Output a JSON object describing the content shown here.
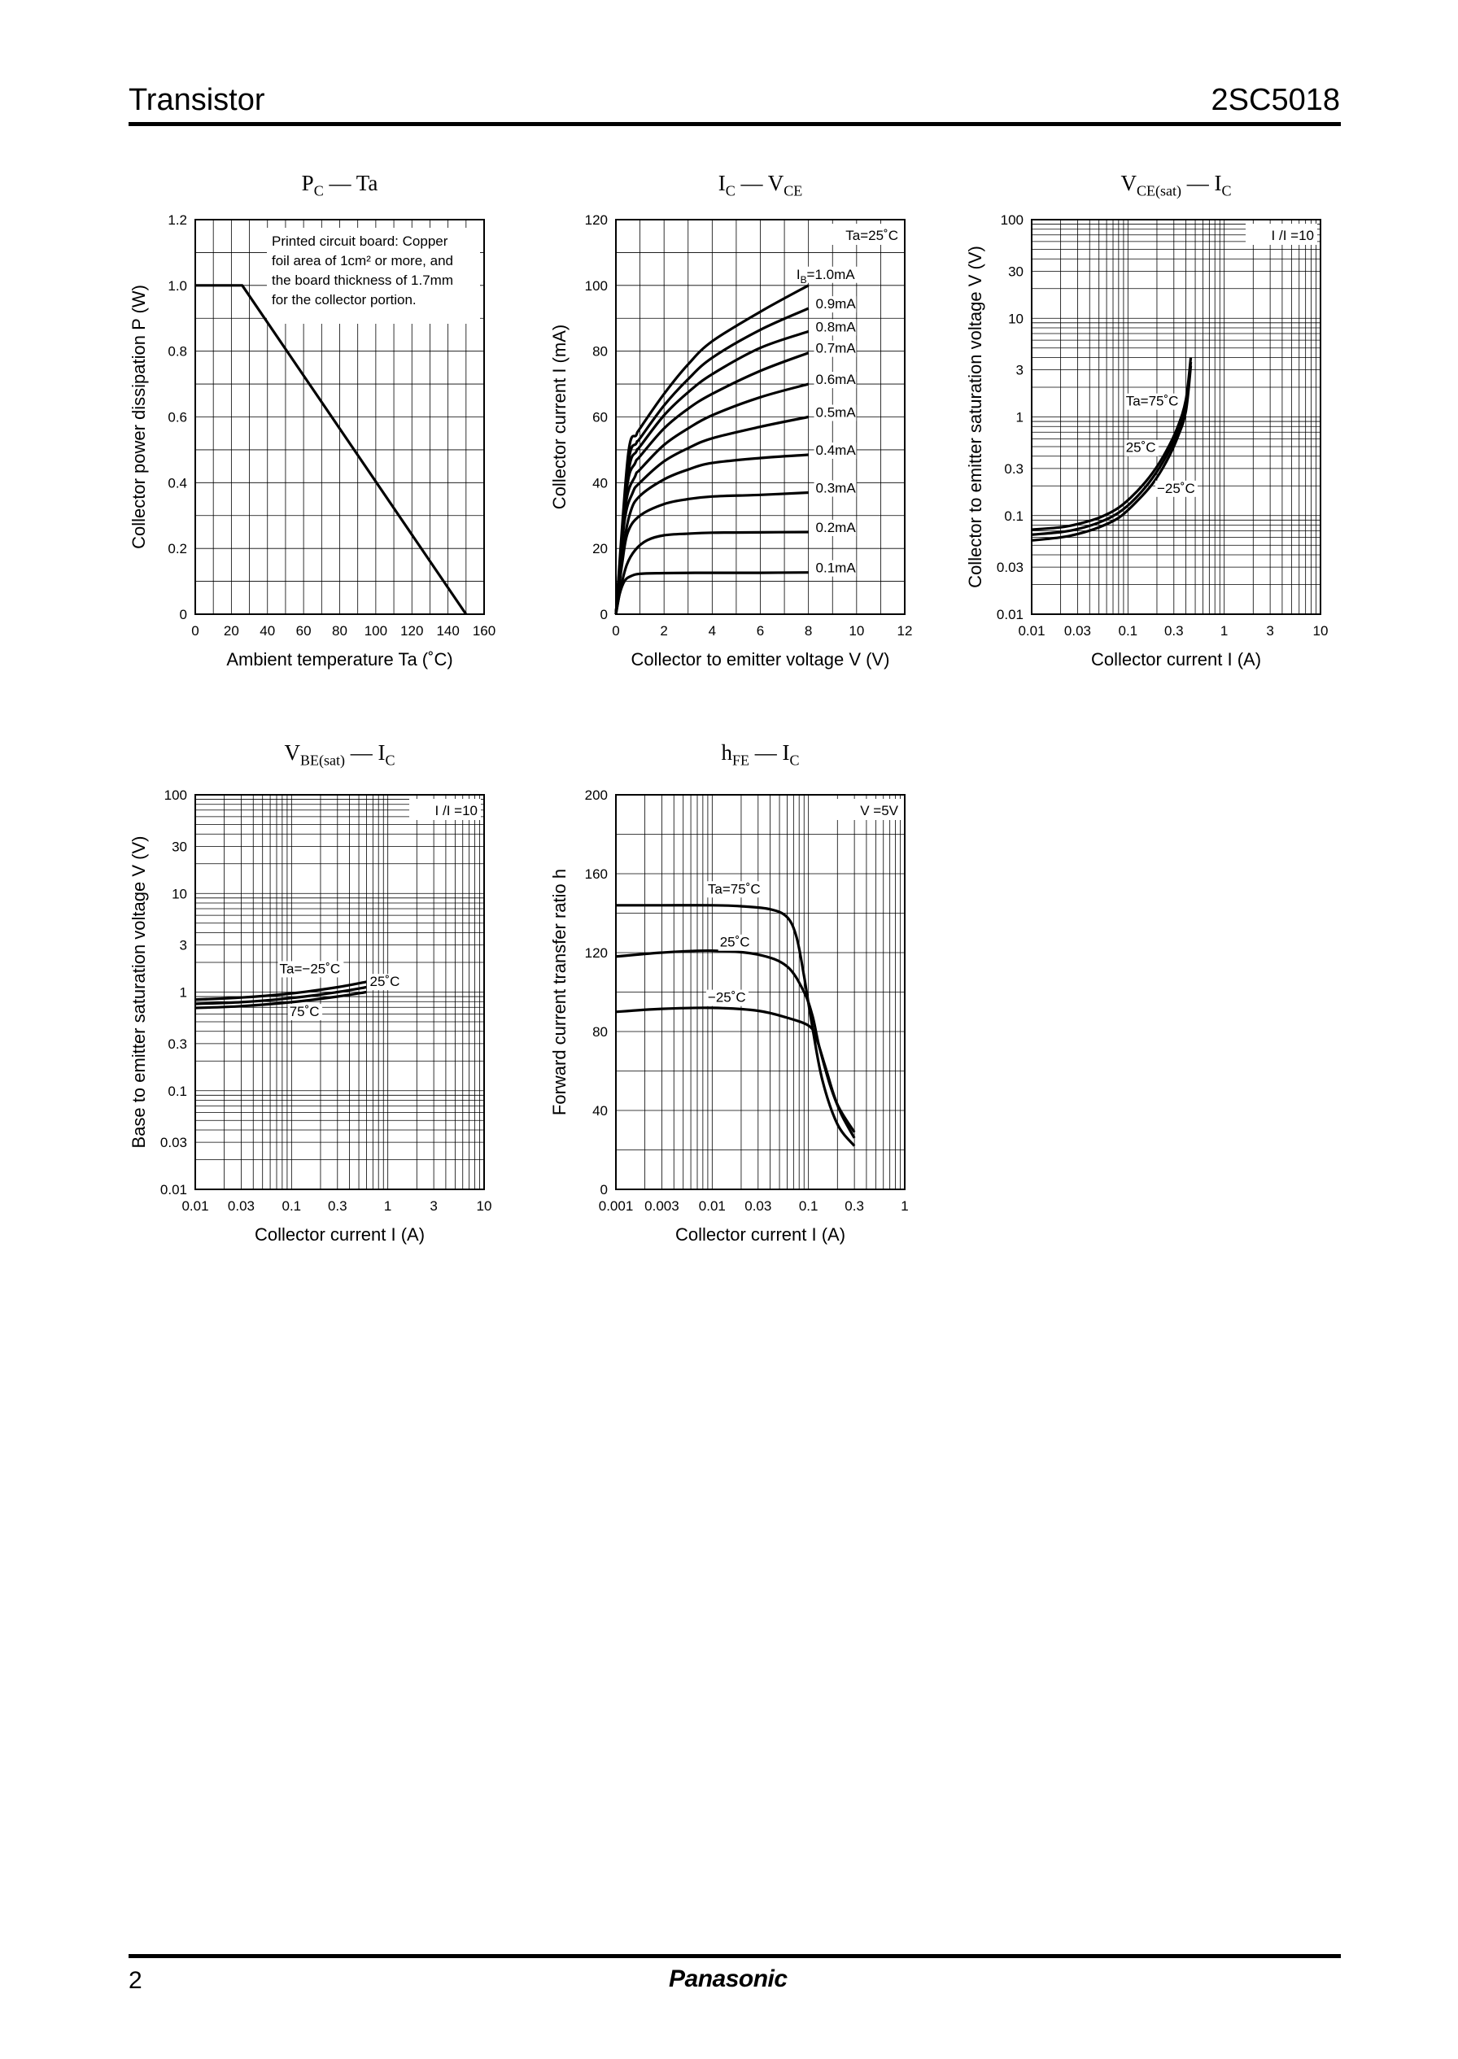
{
  "header": {
    "category": "Transistor",
    "part_number": "2SC5018"
  },
  "footer": {
    "page_number": "2",
    "brand": "Panasonic"
  },
  "chart_data": [
    {
      "id": "pc-ta",
      "type": "line",
      "title": {
        "main": "P",
        "sub": "C",
        "sep": " — ",
        "main2": "Ta",
        "sub2": ""
      },
      "xlabel": "Ambient temperature  Ta  (˚C)",
      "ylabel": "Collector power dissipation  P  (W)",
      "xscale": "linear",
      "yscale": "linear",
      "xlim": [
        0,
        160
      ],
      "ylim": [
        0,
        1.2
      ],
      "xticks": [
        0,
        20,
        40,
        60,
        80,
        100,
        120,
        140,
        160
      ],
      "yticks": [
        0,
        0.2,
        0.4,
        0.6,
        0.8,
        1.0,
        1.2
      ],
      "xtick_labels": [
        "0",
        "20",
        "40",
        "60",
        "80",
        "100",
        "120",
        "140",
        "160"
      ],
      "ytick_labels": [
        "0",
        "0.2",
        "0.4",
        "0.6",
        "0.8",
        "1.0",
        "1.2"
      ],
      "grid": true,
      "annotation_lines": [
        "Printed circuit board: Copper",
        "foil area of 1cm² or more, and",
        "the board thickness of 1.7mm",
        "for the collector portion."
      ],
      "series": [
        {
          "x": [
            0,
            26,
            150
          ],
          "y": [
            1.0,
            1.0,
            0
          ]
        }
      ],
      "labels": []
    },
    {
      "id": "ic-vce",
      "type": "line",
      "title": {
        "main": "I",
        "sub": "C",
        "sep": " — ",
        "main2": "V",
        "sub2": "CE"
      },
      "xlabel": "Collector to emitter voltage  V  (V)",
      "ylabel": "Collector current  I  (mA)",
      "xscale": "linear",
      "yscale": "linear",
      "xlim": [
        0,
        12
      ],
      "ylim": [
        0,
        120
      ],
      "xticks": [
        0,
        2,
        4,
        6,
        8,
        10,
        12
      ],
      "yticks": [
        0,
        20,
        40,
        60,
        80,
        100,
        120
      ],
      "xtick_labels": [
        "0",
        "2",
        "4",
        "6",
        "8",
        "10",
        "12"
      ],
      "ytick_labels": [
        "0",
        "20",
        "40",
        "60",
        "80",
        "100",
        "120"
      ],
      "grid": true,
      "condition": "Ta=25˚C",
      "series": [
        {
          "name": "0.1mA",
          "x": [
            0,
            0.15,
            0.35,
            0.6,
            1,
            2,
            4,
            6,
            8
          ],
          "y": [
            0,
            6,
            10,
            11.5,
            12.3,
            12.5,
            12.6,
            12.6,
            12.7
          ]
        },
        {
          "name": "0.2mA",
          "x": [
            0,
            0.2,
            0.45,
            0.8,
            1.3,
            2,
            3,
            4,
            6,
            8
          ],
          "y": [
            0,
            8,
            15,
            19.5,
            22.5,
            24,
            24.5,
            24.8,
            24.9,
            25
          ]
        },
        {
          "name": "0.3mA",
          "x": [
            0,
            0.25,
            0.5,
            1,
            2,
            3,
            4,
            6,
            8
          ],
          "y": [
            0,
            15,
            25,
            30,
            33.5,
            35,
            35.8,
            36.3,
            37
          ]
        },
        {
          "name": "0.4mA",
          "x": [
            0,
            0.3,
            0.6,
            1,
            2,
            3,
            4,
            6,
            8
          ],
          "y": [
            0,
            20,
            31,
            36,
            41,
            44,
            46,
            47.5,
            48.5
          ]
        },
        {
          "name": "0.5mA",
          "x": [
            0,
            0.35,
            0.7,
            1,
            2,
            3,
            4,
            6,
            8
          ],
          "y": [
            0,
            28,
            37,
            40,
            46.5,
            50.5,
            53.5,
            57,
            60
          ]
        },
        {
          "name": "0.6mA",
          "x": [
            0,
            0.4,
            0.8,
            1,
            2,
            3,
            4,
            6,
            8
          ],
          "y": [
            0,
            33,
            42,
            44,
            51.5,
            56.5,
            60.5,
            66,
            70
          ]
        },
        {
          "name": "0.7mA",
          "x": [
            0,
            0.45,
            0.8,
            1,
            2,
            3,
            4,
            6,
            8
          ],
          "y": [
            0,
            38,
            46,
            48,
            56.5,
            62.5,
            67,
            74,
            79.5
          ]
        },
        {
          "name": "0.8mA",
          "x": [
            0,
            0.5,
            0.85,
            1,
            2,
            3,
            4,
            6,
            8
          ],
          "y": [
            0,
            42,
            49.5,
            51,
            60.5,
            67.5,
            73,
            81,
            86
          ]
        },
        {
          "name": "0.9mA",
          "x": [
            0,
            0.5,
            0.85,
            1,
            2,
            3,
            4,
            6,
            8
          ],
          "y": [
            0,
            45,
            52,
            53.5,
            63.5,
            71.5,
            78,
            86.5,
            93
          ]
        },
        {
          "name": "1.0mA",
          "x": [
            0,
            0.5,
            0.85,
            1,
            2,
            3,
            4,
            6,
            8
          ],
          "y": [
            0,
            48,
            54.5,
            56.5,
            67,
            76,
            83,
            92,
            100
          ]
        }
      ],
      "labels": [
        {
          "text": "I",
          "sub": "B",
          "after": "=1.0mA",
          "x": 7.5,
          "y": 102
        },
        {
          "text": "0.9mA",
          "x": 8.3,
          "y": 93
        },
        {
          "text": "0.8mA",
          "x": 8.3,
          "y": 86
        },
        {
          "text": "0.7mA",
          "x": 8.3,
          "y": 79.5
        },
        {
          "text": "0.6mA",
          "x": 8.3,
          "y": 70
        },
        {
          "text": "0.5mA",
          "x": 8.3,
          "y": 60
        },
        {
          "text": "0.4mA",
          "x": 8.3,
          "y": 48.5
        },
        {
          "text": "0.3mA",
          "x": 8.3,
          "y": 37
        },
        {
          "text": "0.2mA",
          "x": 8.3,
          "y": 25
        },
        {
          "text": "0.1mA",
          "x": 8.3,
          "y": 12.7
        }
      ]
    },
    {
      "id": "vcesat-ic",
      "type": "line",
      "title": {
        "main": "V",
        "sub": "CE(sat)",
        "sep": " — ",
        "main2": "I",
        "sub2": "C"
      },
      "xlabel": "Collector current  I  (A)",
      "ylabel": "Collector to emitter saturation voltage  V  (V)",
      "xscale": "log",
      "yscale": "log",
      "xlim": [
        0.01,
        10
      ],
      "ylim": [
        0.01,
        100
      ],
      "xticks": [
        0.01,
        0.03,
        0.1,
        0.3,
        1,
        3,
        10
      ],
      "yticks": [
        0.01,
        0.03,
        0.1,
        0.3,
        1,
        3,
        10,
        30,
        100
      ],
      "xtick_labels": [
        "0.01",
        "0.03",
        "0.1",
        "0.3",
        "1",
        "3",
        "10"
      ],
      "ytick_labels": [
        "0.01",
        "0.03",
        "0.1",
        "0.3",
        "1",
        "3",
        "10",
        "30",
        "100"
      ],
      "grid": true,
      "condition": "I /I =10",
      "series": [
        {
          "name": "Ta=75˚C",
          "x": [
            0.01,
            0.02,
            0.03,
            0.05,
            0.08,
            0.12,
            0.18,
            0.25,
            0.33,
            0.4,
            0.45
          ],
          "y": [
            0.072,
            0.076,
            0.082,
            0.095,
            0.12,
            0.17,
            0.27,
            0.45,
            0.8,
            1.5,
            4.0
          ]
        },
        {
          "name": "25˚C",
          "x": [
            0.01,
            0.02,
            0.03,
            0.05,
            0.08,
            0.12,
            0.18,
            0.25,
            0.33,
            0.4,
            0.45
          ],
          "y": [
            0.064,
            0.068,
            0.073,
            0.085,
            0.107,
            0.15,
            0.24,
            0.4,
            0.72,
            1.3,
            3.6
          ]
        },
        {
          "name": "−25˚C",
          "x": [
            0.01,
            0.02,
            0.03,
            0.05,
            0.08,
            0.12,
            0.18,
            0.25,
            0.33,
            0.4,
            0.45
          ],
          "y": [
            0.056,
            0.06,
            0.065,
            0.076,
            0.095,
            0.135,
            0.21,
            0.35,
            0.63,
            1.15,
            3.3
          ]
        }
      ],
      "labels": [
        {
          "text": "Ta=75˚C",
          "x": 0.095,
          "y": 1.3
        },
        {
          "text": "25˚C",
          "x": 0.095,
          "y": 0.44
        },
        {
          "text": "−25˚C",
          "x": 0.2,
          "y": 0.17
        }
      ]
    },
    {
      "id": "vbesat-ic",
      "type": "line",
      "title": {
        "main": "V",
        "sub": "BE(sat)",
        "sep": " — ",
        "main2": "I",
        "sub2": "C"
      },
      "xlabel": "Collector current  I  (A)",
      "ylabel": "Base to emitter saturation voltage  V  (V)",
      "xscale": "log",
      "yscale": "log",
      "xlim": [
        0.01,
        10
      ],
      "ylim": [
        0.01,
        100
      ],
      "xticks": [
        0.01,
        0.03,
        0.1,
        0.3,
        1,
        3,
        10
      ],
      "yticks": [
        0.01,
        0.03,
        0.1,
        0.3,
        1,
        3,
        10,
        30,
        100
      ],
      "xtick_labels": [
        "0.01",
        "0.03",
        "0.1",
        "0.3",
        "1",
        "3",
        "10"
      ],
      "ytick_labels": [
        "0.01",
        "0.03",
        "0.1",
        "0.3",
        "1",
        "3",
        "10",
        "30",
        "100"
      ],
      "grid": true,
      "condition": "I /I =10",
      "series": [
        {
          "name": "Ta=−25˚C",
          "x": [
            0.01,
            0.03,
            0.1,
            0.3,
            0.6
          ],
          "y": [
            0.84,
            0.88,
            0.97,
            1.12,
            1.27
          ]
        },
        {
          "name": "25˚C",
          "x": [
            0.01,
            0.03,
            0.1,
            0.3,
            0.6
          ],
          "y": [
            0.76,
            0.79,
            0.87,
            1.0,
            1.12
          ]
        },
        {
          "name": "75˚C",
          "x": [
            0.01,
            0.03,
            0.1,
            0.3,
            0.6
          ],
          "y": [
            0.69,
            0.72,
            0.79,
            0.9,
            1.0
          ]
        }
      ],
      "labels": [
        {
          "text": "Ta=−25˚C",
          "x": 0.075,
          "y": 1.55
        },
        {
          "text": "25˚C",
          "x": 0.65,
          "y": 1.15
        },
        {
          "text": "75˚C",
          "x": 0.095,
          "y": 0.57
        }
      ]
    },
    {
      "id": "hfe-ic",
      "type": "line",
      "title": {
        "main": "h",
        "sub": "FE",
        "sep": " — ",
        "main2": "I",
        "sub2": "C"
      },
      "xlabel": "Collector current  I  (A)",
      "ylabel": "Forward current transfer ratio  h",
      "xscale": "log",
      "yscale": "linear",
      "xlim": [
        0.001,
        1
      ],
      "ylim": [
        0,
        200
      ],
      "xticks": [
        0.001,
        0.003,
        0.01,
        0.03,
        0.1,
        0.3,
        1
      ],
      "yticks": [
        0,
        40,
        80,
        120,
        160,
        200
      ],
      "xtick_labels": [
        "0.001",
        "0.003",
        "0.01",
        "0.03",
        "0.1",
        "0.3",
        "1"
      ],
      "ytick_labels": [
        "0",
        "40",
        "80",
        "120",
        "160",
        "200"
      ],
      "grid": true,
      "condition": "V =5V",
      "series": [
        {
          "name": "Ta=75˚C",
          "x": [
            0.001,
            0.003,
            0.01,
            0.02,
            0.04,
            0.06,
            0.075,
            0.09,
            0.11,
            0.14,
            0.2,
            0.3
          ],
          "y": [
            144,
            144,
            144,
            143.5,
            142,
            138,
            128,
            108,
            82,
            55,
            33,
            22
          ]
        },
        {
          "name": "25˚C",
          "x": [
            0.001,
            0.003,
            0.01,
            0.03,
            0.06,
            0.09,
            0.11,
            0.13,
            0.17,
            0.22,
            0.3
          ],
          "y": [
            118,
            120,
            121,
            119,
            113,
            100,
            88,
            72,
            52,
            38,
            26
          ]
        },
        {
          "name": "−25˚C",
          "x": [
            0.001,
            0.003,
            0.01,
            0.03,
            0.06,
            0.1,
            0.12,
            0.15,
            0.2,
            0.3
          ],
          "y": [
            90,
            91.5,
            92,
            90.5,
            87,
            83,
            77,
            62,
            43,
            29
          ]
        }
      ],
      "labels": [
        {
          "text": "Ta=75˚C",
          "x": 0.009,
          "y": 150
        },
        {
          "text": "25˚C",
          "x": 0.012,
          "y": 123
        },
        {
          "text": "−25˚C",
          "x": 0.009,
          "y": 95
        }
      ]
    }
  ]
}
